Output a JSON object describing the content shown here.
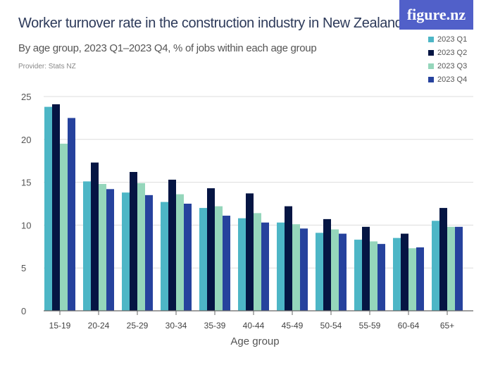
{
  "header": {
    "title": "Worker turnover rate in the construction industry in New Zealand",
    "subtitle": "By age group, 2023 Q1–2023 Q4, % of jobs within each age group",
    "provider": "Provider: Stats NZ",
    "logo": "figure.nz"
  },
  "chart_data": {
    "type": "bar",
    "title": "Worker turnover rate in the construction industry in New Zealand",
    "xlabel": "Age group",
    "ylabel": "",
    "ylim": [
      0,
      25
    ],
    "yticks": [
      0,
      5,
      10,
      15,
      20,
      25
    ],
    "grid": true,
    "legend": "top-right",
    "categories": [
      "15-19",
      "20-24",
      "25-29",
      "30-34",
      "35-39",
      "40-44",
      "45-49",
      "50-54",
      "55-59",
      "60-64",
      "65+"
    ],
    "series": [
      {
        "name": "2023 Q1",
        "color": "#4db6c6",
        "values": [
          23.8,
          15.1,
          13.8,
          12.7,
          12.0,
          10.8,
          10.3,
          9.1,
          8.3,
          8.5,
          10.5
        ]
      },
      {
        "name": "2023 Q2",
        "color": "#051543",
        "values": [
          24.1,
          17.3,
          16.2,
          15.3,
          14.3,
          13.7,
          12.2,
          10.7,
          9.8,
          9.0,
          12.0
        ]
      },
      {
        "name": "2023 Q3",
        "color": "#95d6bb",
        "values": [
          19.5,
          14.8,
          14.9,
          13.6,
          12.2,
          11.4,
          10.1,
          9.5,
          8.1,
          7.3,
          9.8
        ]
      },
      {
        "name": "2023 Q4",
        "color": "#26429d",
        "values": [
          22.5,
          14.2,
          13.5,
          12.5,
          11.1,
          10.3,
          9.6,
          9.0,
          7.8,
          7.4,
          9.8
        ]
      }
    ]
  }
}
